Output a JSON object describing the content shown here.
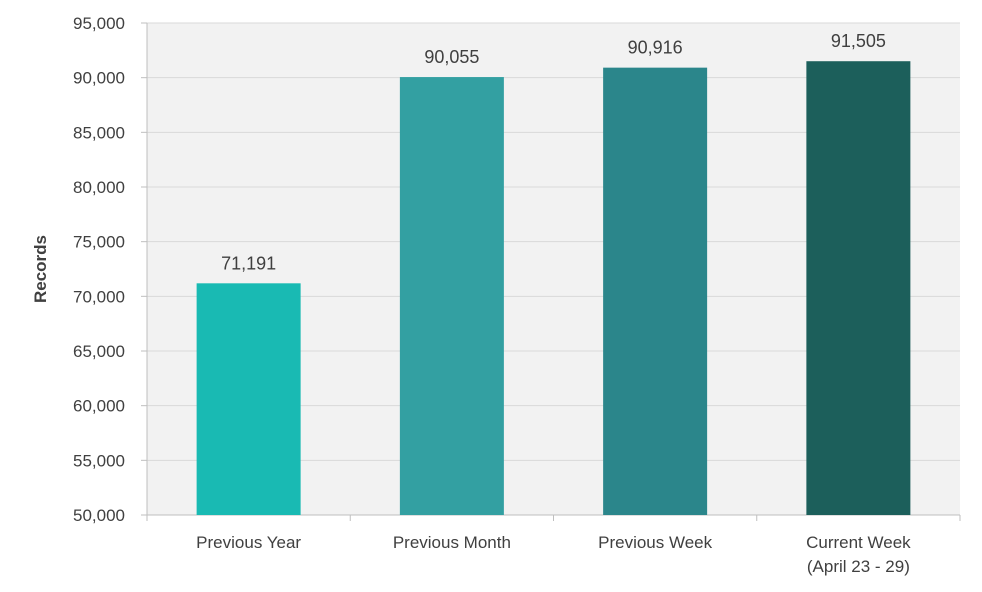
{
  "chart_data": {
    "type": "bar",
    "categories": [
      [
        "Previous Year"
      ],
      [
        "Previous Month"
      ],
      [
        "Previous Week"
      ],
      [
        "Current Week",
        "(April 23 - 29)"
      ]
    ],
    "values": [
      71191,
      90055,
      90916,
      91505
    ],
    "value_labels": [
      "71,191",
      "90,055",
      "90,916",
      "91,505"
    ],
    "ylabel": "Records",
    "ylim": [
      50000,
      95000
    ],
    "ytick_step": 5000,
    "ytick_labels": [
      "50,000",
      "55,000",
      "60,000",
      "65,000",
      "70,000",
      "75,000",
      "80,000",
      "85,000",
      "90,000",
      "95,000"
    ],
    "bar_colors": [
      "#19bab3",
      "#33a0a2",
      "#2b868b",
      "#1c5f5b"
    ],
    "plot_background": "#f2f2f2",
    "gridline_color": "#d9d9d9",
    "grid": true
  }
}
